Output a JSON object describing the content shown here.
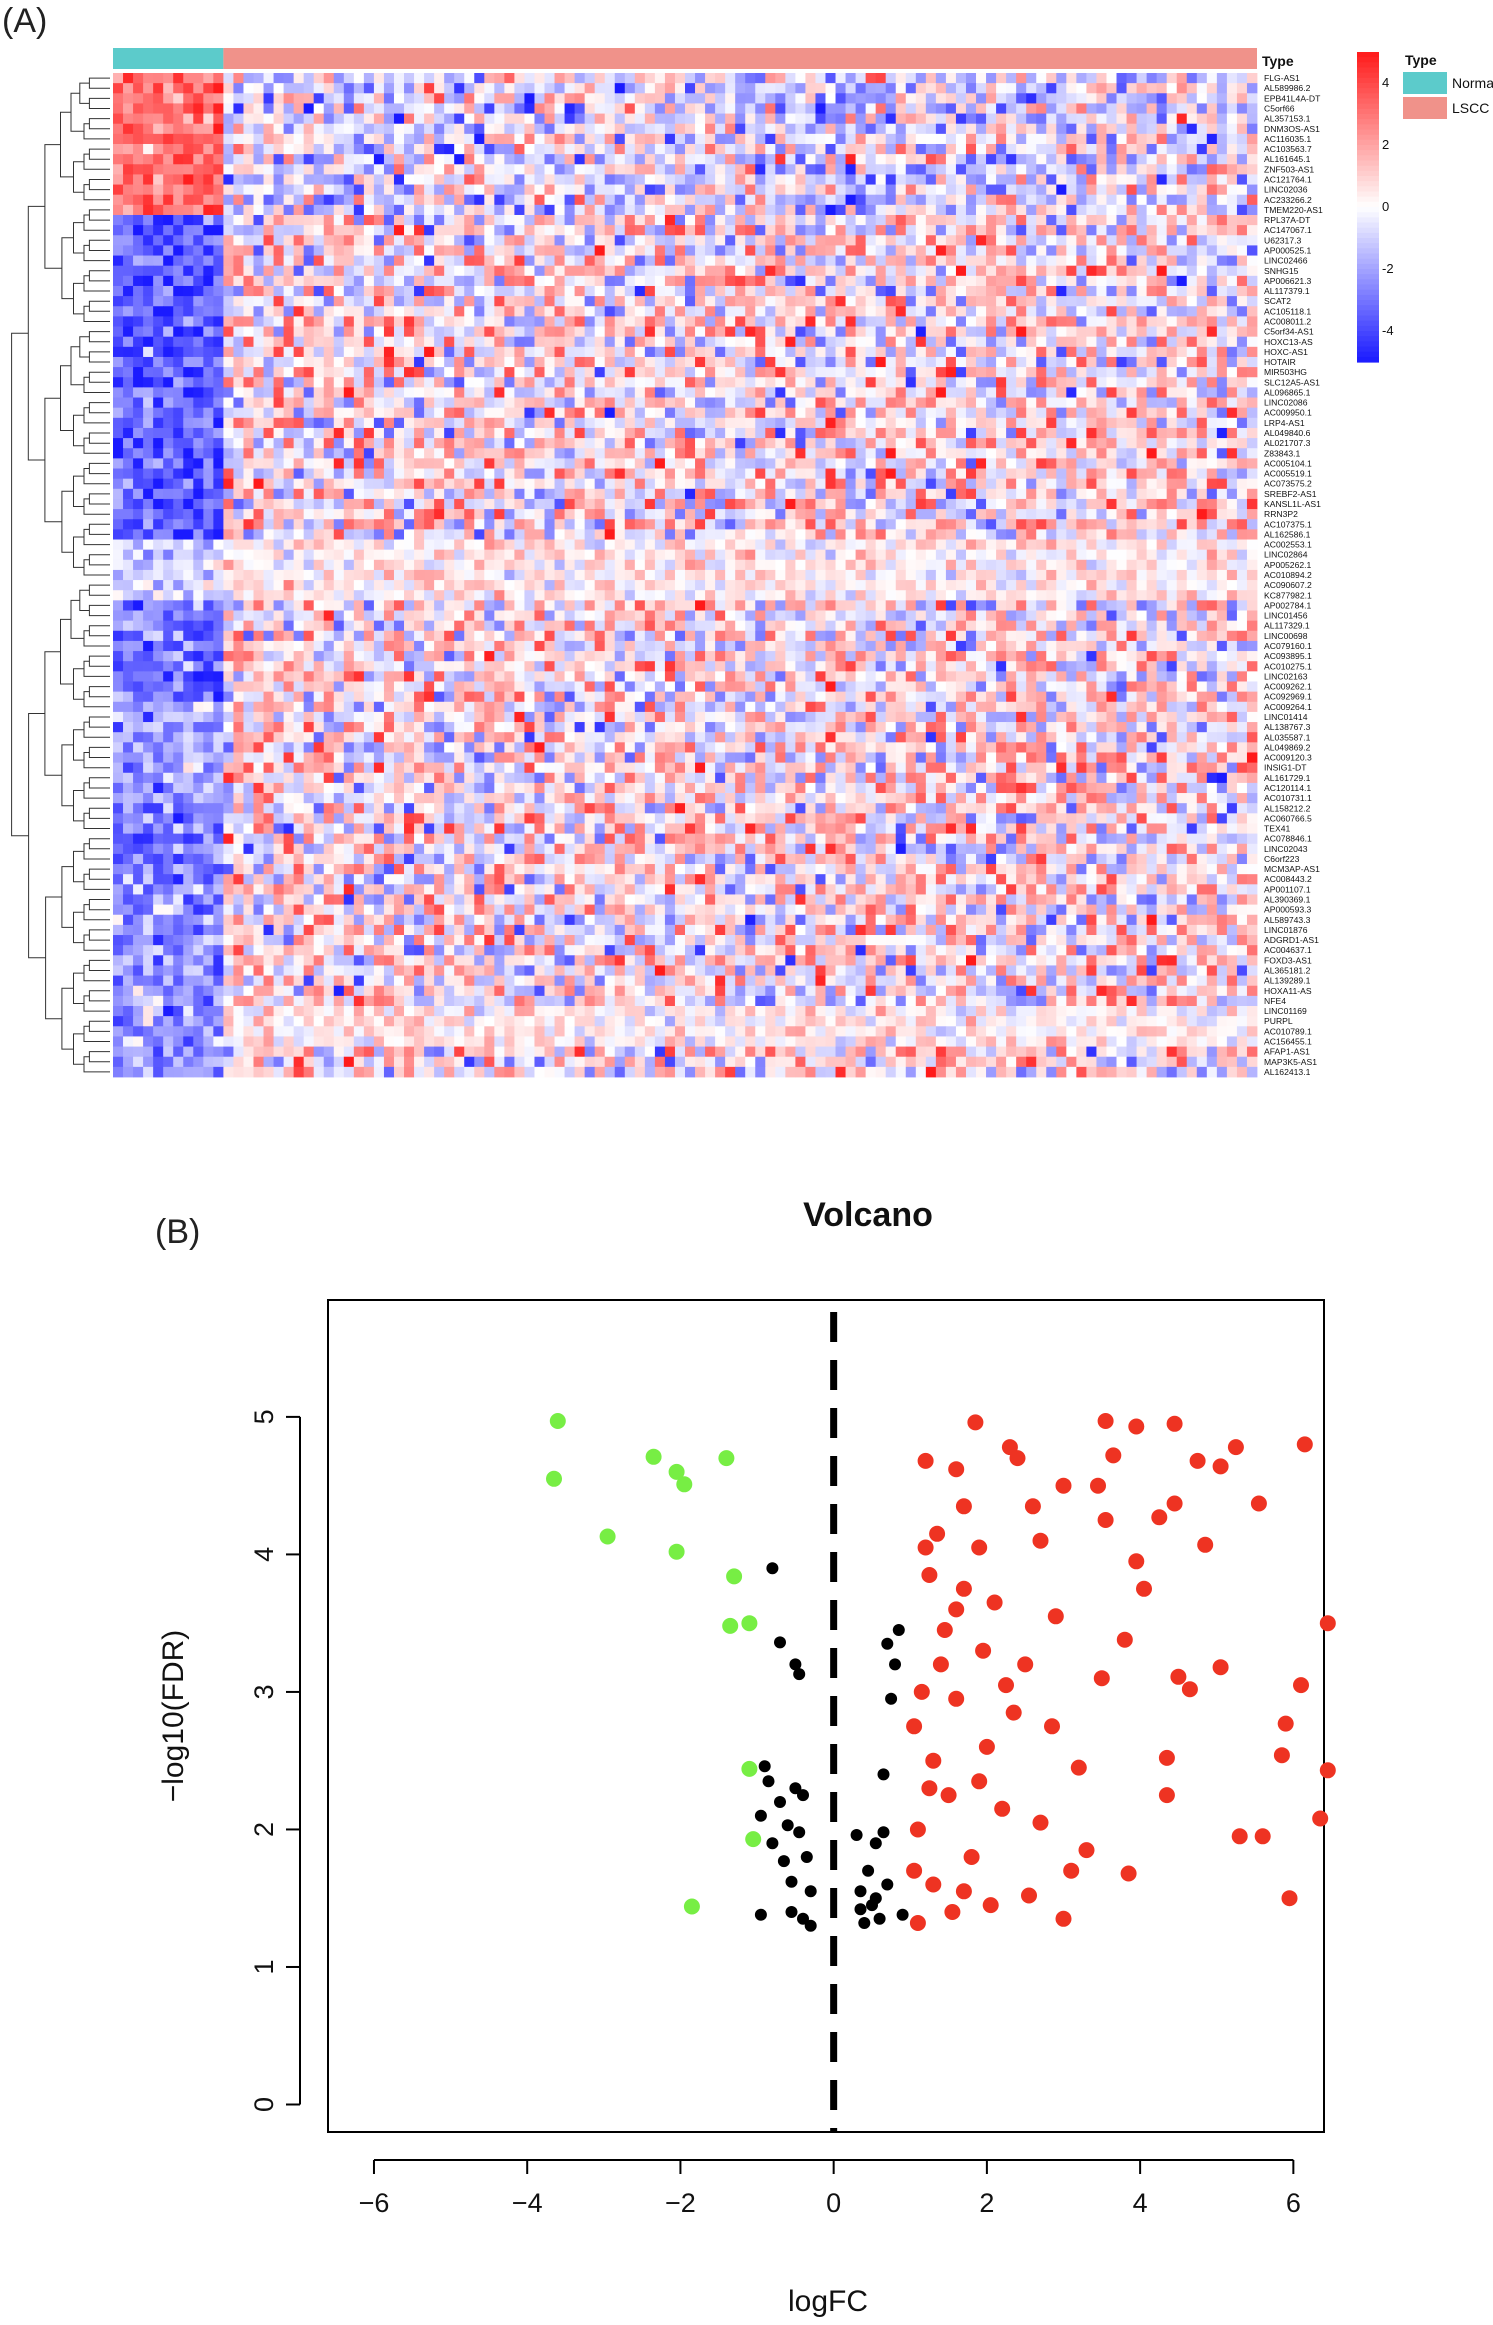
{
  "panels": {
    "a_label": "(A)",
    "b_label": "(B)"
  },
  "chart_data": [
    {
      "type": "heatmap",
      "title": "",
      "annotation_title": "Type",
      "groups": [
        {
          "name": "Normal",
          "n_samples": 11,
          "color": "#5ccbcb"
        },
        {
          "name": "LSCC",
          "n_samples": 103,
          "color": "#f0928a"
        }
      ],
      "color_scale": {
        "low": "#1a1aff",
        "mid": "#ffffff",
        "high": "#ff1a1a",
        "min": -5,
        "max": 5,
        "ticks": [
          4,
          2,
          0,
          -2,
          -4
        ]
      },
      "genes": [
        "FLG-AS1",
        "AL589986.2",
        "EPB41L4A-DT",
        "C5orf66",
        "AL357153.1",
        "DNM3OS-AS1",
        "AC116035.1",
        "AC103563.7",
        "AL161645.1",
        "ZNF503-AS1",
        "AC121764.1",
        "LINC02036",
        "AC233266.2",
        "TMEM220-AS1",
        "RPL37A-DT",
        "AC147067.1",
        "U62317.3",
        "AP000525.1",
        "LINC02466",
        "SNHG15",
        "AP006621.3",
        "AL117379.1",
        "SCAT2",
        "AC105118.1",
        "AC008011.2",
        "C5orf34-AS1",
        "HOXC13-AS",
        "HOXC-AS1",
        "HOTAIR",
        "MIR503HG",
        "SLC12A5-AS1",
        "AL096865.1",
        "LINC02086",
        "AC009950.1",
        "LRP4-AS1",
        "AL049840.6",
        "AL021707.3",
        "Z83843.1",
        "AC005104.1",
        "AC005519.1",
        "AC073575.2",
        "SREBF2-AS1",
        "KANSL1L-AS1",
        "RRN3P2",
        "AC107375.1",
        "AL162586.1",
        "AC002553.1",
        "LINC02864",
        "AP005262.1",
        "AC010894.2",
        "AC090607.2",
        "KC877982.1",
        "AP002784.1",
        "LINC01456",
        "AL117329.1",
        "LINC00698",
        "AC079160.1",
        "AC093895.1",
        "AC010275.1",
        "LINC02163",
        "AC009262.1",
        "AC092969.1",
        "AC009264.1",
        "LINC01414",
        "AL138767.3",
        "AL035587.1",
        "AL049869.2",
        "AC009120.3",
        "INSIG1-DT",
        "AL161729.1",
        "AC120114.1",
        "AC010731.1",
        "AL158212.2",
        "AC060766.5",
        "TEX41",
        "AC078846.1",
        "LINC02043",
        "C6orf223",
        "MCM3AP-AS1",
        "AC008443.2",
        "AP001107.1",
        "AL390369.1",
        "AP000593.3",
        "AL589743.3",
        "LINC01876",
        "ADGRD1-AS1",
        "AC004637.1",
        "FOXD3-AS1",
        "AL365181.2",
        "AL139289.1",
        "HOXA11-AS",
        "NFE4",
        "LINC01169",
        "PURPL",
        "AC010789.1",
        "AC156455.1",
        "AFAP1-AS1",
        "MAP3K5-AS1",
        "AL162413.1"
      ]
    },
    {
      "type": "scatter",
      "title": "Volcano",
      "xlabel": "logFC",
      "ylabel": "−log10(FDR)",
      "xlim": [
        -6.6,
        6.4
      ],
      "ylim": [
        -0.2,
        5.85
      ],
      "xticks": [
        -6,
        -4,
        -2,
        0,
        2,
        4,
        6
      ],
      "yticks": [
        0,
        1,
        2,
        3,
        4,
        5
      ],
      "xtick_labels": [
        "−6",
        "−4",
        "−2",
        "0",
        "2",
        "4",
        "6"
      ],
      "ytick_labels": [
        "0",
        "1",
        "2",
        "3",
        "4",
        "5"
      ],
      "vline": 0,
      "colors": {
        "down": "#77ee44",
        "ns": "#000000",
        "up": "#ee3322"
      },
      "series": [
        {
          "name": "down",
          "points": [
            [
              -3.6,
              4.97
            ],
            [
              -3.65,
              4.55
            ],
            [
              -2.35,
              4.71
            ],
            [
              -2.05,
              4.6
            ],
            [
              -1.95,
              4.51
            ],
            [
              -1.4,
              4.7
            ],
            [
              -2.95,
              4.13
            ],
            [
              -2.05,
              4.02
            ],
            [
              -1.3,
              3.84
            ],
            [
              -1.35,
              3.48
            ],
            [
              -1.1,
              3.5
            ],
            [
              -1.1,
              2.44
            ],
            [
              -1.05,
              1.93
            ],
            [
              -1.85,
              1.44
            ]
          ]
        },
        {
          "name": "ns",
          "points": [
            [
              -0.8,
              3.9
            ],
            [
              -0.7,
              3.36
            ],
            [
              -0.5,
              3.2
            ],
            [
              -0.45,
              3.13
            ],
            [
              -0.9,
              2.46
            ],
            [
              -0.95,
              2.1
            ],
            [
              -0.85,
              2.35
            ],
            [
              -0.7,
              2.2
            ],
            [
              -0.6,
              2.03
            ],
            [
              -0.5,
              2.3
            ],
            [
              -0.45,
              1.98
            ],
            [
              -0.4,
              2.25
            ],
            [
              -0.8,
              1.9
            ],
            [
              -0.65,
              1.77
            ],
            [
              -0.55,
              1.62
            ],
            [
              -0.35,
              1.8
            ],
            [
              -0.3,
              1.55
            ],
            [
              -0.95,
              1.38
            ],
            [
              -0.55,
              1.4
            ],
            [
              -0.4,
              1.35
            ],
            [
              -0.3,
              1.3
            ],
            [
              0.3,
              1.96
            ],
            [
              0.35,
              1.55
            ],
            [
              0.45,
              1.7
            ],
            [
              0.5,
              1.45
            ],
            [
              0.55,
              1.9
            ],
            [
              0.6,
              1.35
            ],
            [
              0.65,
              2.4
            ],
            [
              0.7,
              1.6
            ],
            [
              0.75,
              2.95
            ],
            [
              0.8,
              3.2
            ],
            [
              0.85,
              3.45
            ],
            [
              0.7,
              3.35
            ],
            [
              0.4,
              1.32
            ],
            [
              0.35,
              1.42
            ],
            [
              0.9,
              1.38
            ],
            [
              0.55,
              1.5
            ],
            [
              0.65,
              1.98
            ]
          ]
        },
        {
          "name": "up",
          "points": [
            [
              6.15,
              4.8
            ],
            [
              5.25,
              4.78
            ],
            [
              4.45,
              4.95
            ],
            [
              3.55,
              4.97
            ],
            [
              3.95,
              4.93
            ],
            [
              1.85,
              4.96
            ],
            [
              2.3,
              4.78
            ],
            [
              2.4,
              4.7
            ],
            [
              1.2,
              4.68
            ],
            [
              1.6,
              4.62
            ],
            [
              3.65,
              4.72
            ],
            [
              4.75,
              4.68
            ],
            [
              5.05,
              4.64
            ],
            [
              5.55,
              4.37
            ],
            [
              4.45,
              4.37
            ],
            [
              4.25,
              4.27
            ],
            [
              4.85,
              4.07
            ],
            [
              3.45,
              4.5
            ],
            [
              3.55,
              4.25
            ],
            [
              3.0,
              4.5
            ],
            [
              2.7,
              4.1
            ],
            [
              3.95,
              3.95
            ],
            [
              4.05,
              3.75
            ],
            [
              6.45,
              3.5
            ],
            [
              3.5,
              3.1
            ],
            [
              3.8,
              3.38
            ],
            [
              4.5,
              3.11
            ],
            [
              4.65,
              3.02
            ],
            [
              5.05,
              3.18
            ],
            [
              6.1,
              3.05
            ],
            [
              5.9,
              2.77
            ],
            [
              6.45,
              2.43
            ],
            [
              5.85,
              2.54
            ],
            [
              4.35,
              2.52
            ],
            [
              4.35,
              2.25
            ],
            [
              6.35,
              2.08
            ],
            [
              5.3,
              1.95
            ],
            [
              5.6,
              1.95
            ],
            [
              3.85,
              1.68
            ],
            [
              3.1,
              1.7
            ],
            [
              2.55,
              1.52
            ],
            [
              3.0,
              1.35
            ],
            [
              5.95,
              1.5
            ],
            [
              3.3,
              1.85
            ],
            [
              1.7,
              1.55
            ],
            [
              1.1,
              1.32
            ],
            [
              1.1,
              2.0
            ],
            [
              1.3,
              2.5
            ],
            [
              1.15,
              3.0
            ],
            [
              1.45,
              3.45
            ],
            [
              1.7,
              3.75
            ],
            [
              1.9,
              4.05
            ],
            [
              2.1,
              3.65
            ],
            [
              2.5,
              3.2
            ],
            [
              2.85,
              2.75
            ],
            [
              1.5,
              2.25
            ],
            [
              1.8,
              1.8
            ],
            [
              2.0,
              2.6
            ],
            [
              2.25,
              3.05
            ],
            [
              1.25,
              3.85
            ],
            [
              1.35,
              4.15
            ],
            [
              2.6,
              4.35
            ],
            [
              2.2,
              2.15
            ],
            [
              1.6,
              2.95
            ],
            [
              1.05,
              2.75
            ],
            [
              1.3,
              1.6
            ],
            [
              1.55,
              1.4
            ],
            [
              2.05,
              1.45
            ],
            [
              2.7,
              2.05
            ],
            [
              3.2,
              2.45
            ],
            [
              1.95,
              3.3
            ],
            [
              1.4,
              3.2
            ],
            [
              1.25,
              2.3
            ],
            [
              1.05,
              1.7
            ],
            [
              1.9,
              2.35
            ],
            [
              2.35,
              2.85
            ],
            [
              2.9,
              3.55
            ],
            [
              1.7,
              4.35
            ],
            [
              1.2,
              4.05
            ],
            [
              1.6,
              3.6
            ]
          ]
        }
      ]
    }
  ]
}
